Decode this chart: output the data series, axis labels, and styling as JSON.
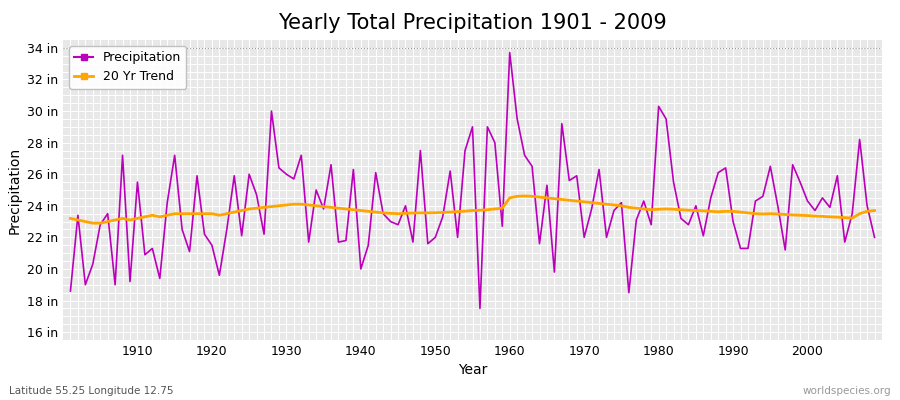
{
  "title": "Yearly Total Precipitation 1901 - 2009",
  "xlabel": "Year",
  "ylabel": "Precipitation",
  "subtitle_lat_lon": "Latitude 55.25 Longitude 12.75",
  "watermark": "worldspecies.org",
  "years": [
    1901,
    1902,
    1903,
    1904,
    1905,
    1906,
    1907,
    1908,
    1909,
    1910,
    1911,
    1912,
    1913,
    1914,
    1915,
    1916,
    1917,
    1918,
    1919,
    1920,
    1921,
    1922,
    1923,
    1924,
    1925,
    1926,
    1927,
    1928,
    1929,
    1930,
    1931,
    1932,
    1933,
    1934,
    1935,
    1936,
    1937,
    1938,
    1939,
    1940,
    1941,
    1942,
    1943,
    1944,
    1945,
    1946,
    1947,
    1948,
    1949,
    1950,
    1951,
    1952,
    1953,
    1954,
    1955,
    1956,
    1957,
    1958,
    1959,
    1960,
    1961,
    1962,
    1963,
    1964,
    1965,
    1966,
    1967,
    1968,
    1969,
    1970,
    1971,
    1972,
    1973,
    1974,
    1975,
    1976,
    1977,
    1978,
    1979,
    1980,
    1981,
    1982,
    1983,
    1984,
    1985,
    1986,
    1987,
    1988,
    1989,
    1990,
    1991,
    1992,
    1993,
    1994,
    1995,
    1996,
    1997,
    1998,
    1999,
    2000,
    2001,
    2002,
    2003,
    2004,
    2005,
    2006,
    2007,
    2008,
    2009
  ],
  "precip_in": [
    18.6,
    23.4,
    19.0,
    20.3,
    22.8,
    23.5,
    19.0,
    27.2,
    19.2,
    25.5,
    20.9,
    21.3,
    19.4,
    24.2,
    27.2,
    22.5,
    21.1,
    25.9,
    22.2,
    21.5,
    19.6,
    22.5,
    25.9,
    22.1,
    26.0,
    24.7,
    22.2,
    30.0,
    26.4,
    26.0,
    25.7,
    27.2,
    21.7,
    25.0,
    23.8,
    26.6,
    21.7,
    21.8,
    26.3,
    20.0,
    21.5,
    26.1,
    23.5,
    23.0,
    22.8,
    24.0,
    21.7,
    27.5,
    21.6,
    22.0,
    23.3,
    26.2,
    22.0,
    27.5,
    29.0,
    17.5,
    29.0,
    28.0,
    22.7,
    33.7,
    29.5,
    27.2,
    26.5,
    21.6,
    25.3,
    19.8,
    29.2,
    25.6,
    25.9,
    22.0,
    23.8,
    26.3,
    22.0,
    23.7,
    24.2,
    18.5,
    23.1,
    24.3,
    22.8,
    30.3,
    29.5,
    25.5,
    23.2,
    22.8,
    24.0,
    22.1,
    24.5,
    26.1,
    26.4,
    23.0,
    21.3,
    21.3,
    24.3,
    24.6,
    26.5,
    24.0,
    21.2,
    26.6,
    25.5,
    24.3,
    23.7,
    24.5,
    23.9,
    25.9,
    21.7,
    23.5,
    28.2,
    24.0,
    22.0
  ],
  "trend_in": [
    23.2,
    23.1,
    23.0,
    22.9,
    22.9,
    23.0,
    23.1,
    23.2,
    23.1,
    23.2,
    23.3,
    23.4,
    23.3,
    23.4,
    23.5,
    23.5,
    23.5,
    23.5,
    23.5,
    23.5,
    23.4,
    23.5,
    23.6,
    23.7,
    23.8,
    23.85,
    23.9,
    23.95,
    24.0,
    24.05,
    24.1,
    24.1,
    24.05,
    24.0,
    23.95,
    23.9,
    23.85,
    23.8,
    23.75,
    23.7,
    23.65,
    23.6,
    23.55,
    23.52,
    23.5,
    23.52,
    23.54,
    23.55,
    23.55,
    23.56,
    23.58,
    23.6,
    23.63,
    23.66,
    23.7,
    23.72,
    23.75,
    23.8,
    23.85,
    24.5,
    24.6,
    24.62,
    24.6,
    24.55,
    24.5,
    24.45,
    24.4,
    24.35,
    24.3,
    24.25,
    24.2,
    24.15,
    24.1,
    24.05,
    24.0,
    23.9,
    23.85,
    23.8,
    23.75,
    23.78,
    23.8,
    23.78,
    23.75,
    23.72,
    23.7,
    23.68,
    23.65,
    23.62,
    23.65,
    23.65,
    23.6,
    23.55,
    23.5,
    23.48,
    23.5,
    23.48,
    23.45,
    23.42,
    23.4,
    23.38,
    23.35,
    23.33,
    23.3,
    23.28,
    23.25,
    23.22,
    23.5,
    23.65,
    23.7
  ],
  "precip_color": "#BB00BB",
  "trend_color": "#FFA500",
  "bg_color": "#FFFFFF",
  "plot_bg_color": "#E8E8E8",
  "grid_color": "#FFFFFF",
  "yticks": [
    16,
    18,
    20,
    22,
    24,
    26,
    28,
    30,
    32,
    34
  ],
  "ylim": [
    15.5,
    34.5
  ],
  "xlim": [
    1900,
    2010
  ],
  "xticks": [
    1910,
    1920,
    1930,
    1940,
    1950,
    1960,
    1970,
    1980,
    1990,
    2000
  ],
  "dotted_line_y": 34,
  "title_fontsize": 15,
  "axis_label_fontsize": 10,
  "tick_fontsize": 9,
  "legend_fontsize": 9
}
